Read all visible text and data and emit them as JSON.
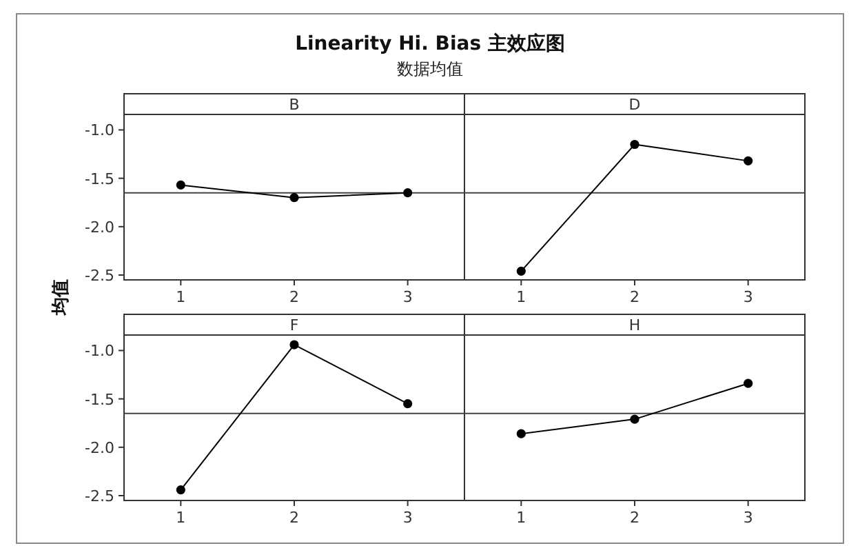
{
  "chart_data": [
    {
      "type": "other",
      "title": "Linearity Hi. Bias 主效应图",
      "subtitle": "数据均值",
      "ylabel": "均值"
    },
    {
      "type": "line",
      "title": "B",
      "categories": [
        "1",
        "2",
        "3"
      ],
      "series": [
        {
          "color": "#000000",
          "values": [
            -1.57,
            -1.7,
            -1.65
          ]
        }
      ],
      "marker": "circle",
      "ylim": [
        -2.55,
        -0.84
      ],
      "yticks": [
        {
          "value": -1,
          "label": "-1.0"
        },
        {
          "value": -1.5,
          "label": "-1.5"
        },
        {
          "value": -2,
          "label": "-2.0"
        },
        {
          "value": -2.5,
          "label": "-2.5"
        }
      ],
      "ref_lines": [
        {
          "axis": "y",
          "value": -1.65,
          "color": "#444444"
        }
      ],
      "grid": false
    },
    {
      "type": "line",
      "title": "D",
      "categories": [
        "1",
        "2",
        "3"
      ],
      "series": [
        {
          "color": "#000000",
          "values": [
            -2.46,
            -1.15,
            -1.32
          ]
        }
      ],
      "marker": "circle",
      "ylim": [
        -2.55,
        -0.84
      ],
      "ref_lines": [
        {
          "axis": "y",
          "value": -1.65,
          "color": "#444444"
        }
      ],
      "grid": false,
      "tick_labels": "x"
    },
    {
      "type": "line",
      "title": "F",
      "categories": [
        "1",
        "2",
        "3"
      ],
      "series": [
        {
          "color": "#000000",
          "values": [
            -2.44,
            -0.94,
            -1.55
          ]
        }
      ],
      "marker": "circle",
      "ylim": [
        -2.55,
        -0.84
      ],
      "yticks": [
        {
          "value": -1,
          "label": "-1.0"
        },
        {
          "value": -1.5,
          "label": "-1.5"
        },
        {
          "value": -2,
          "label": "-2.0"
        },
        {
          "value": -2.5,
          "label": "-2.5"
        }
      ],
      "ref_lines": [
        {
          "axis": "y",
          "value": -1.65,
          "color": "#444444"
        }
      ],
      "grid": false
    },
    {
      "type": "line",
      "title": "H",
      "categories": [
        "1",
        "2",
        "3"
      ],
      "series": [
        {
          "color": "#000000",
          "values": [
            -1.86,
            -1.71,
            -1.34
          ]
        }
      ],
      "marker": "circle",
      "ylim": [
        -2.55,
        -0.84
      ],
      "ref_lines": [
        {
          "axis": "y",
          "value": -1.65,
          "color": "#444444"
        }
      ],
      "grid": false,
      "tick_labels": "x"
    }
  ]
}
